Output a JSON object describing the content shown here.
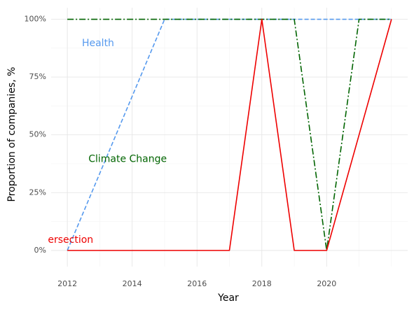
{
  "chart_data": {
    "type": "line",
    "xlabel": "Year",
    "ylabel": "Proportion of companies, %",
    "xlim": [
      2011.5,
      2022.5
    ],
    "ylim": [
      -0.07,
      1.05
    ],
    "x_ticks": [
      2012,
      2014,
      2016,
      2018,
      2020
    ],
    "x_tick_labels": [
      "2012",
      "2014",
      "2016",
      "2018",
      "2020"
    ],
    "y_ticks": [
      0,
      0.25,
      0.5,
      0.75,
      1.0
    ],
    "y_tick_labels": [
      "0%",
      "25%",
      "50%",
      "75%",
      "100%"
    ],
    "grid": true,
    "series": [
      {
        "name": "Health",
        "color": "#5599ee",
        "dash": "dashed",
        "label_text": "Health",
        "label_anchor": {
          "x": 2012.45,
          "y": 0.895
        },
        "x": [
          2012,
          2015,
          2016,
          2017,
          2018,
          2019,
          2020,
          2021,
          2022
        ],
        "y": [
          0,
          1,
          1,
          1,
          1,
          1,
          1,
          1,
          1
        ]
      },
      {
        "name": "Climate Change",
        "color": "#006400",
        "dash": "dashdot",
        "label_text": "Climate Change",
        "label_anchor": {
          "x": 2012.65,
          "y": 0.395
        },
        "x": [
          2012,
          2013,
          2014,
          2015,
          2016,
          2017,
          2018,
          2019,
          2020,
          2021,
          2022
        ],
        "y": [
          1,
          1,
          1,
          1,
          1,
          1,
          1,
          1,
          0,
          1,
          1
        ]
      },
      {
        "name": "Intersection",
        "color": "#ee0000",
        "dash": "solid",
        "label_text": "ersection",
        "label_anchor": {
          "x": 2011.4,
          "y": 0.045
        },
        "x": [
          2012,
          2013,
          2014,
          2015,
          2016,
          2017,
          2018,
          2019,
          2020,
          2022
        ],
        "y": [
          0,
          0,
          0,
          0,
          0,
          0,
          1,
          0,
          0,
          1
        ]
      }
    ]
  }
}
